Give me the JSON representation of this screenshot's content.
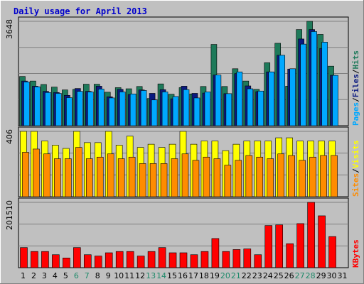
{
  "chart_data": {
    "type": "bar",
    "title": "Daily usage for April 2013",
    "categories": [
      "1",
      "2",
      "3",
      "4",
      "5",
      "6",
      "7",
      "8",
      "9",
      "10",
      "11",
      "12",
      "13",
      "14",
      "15",
      "16",
      "17",
      "18",
      "19",
      "20",
      "21",
      "22",
      "23",
      "24",
      "25",
      "26",
      "27",
      "28",
      "29",
      "30",
      "31"
    ],
    "weekend_days": [
      "6",
      "7",
      "13",
      "14",
      "20",
      "21",
      "27",
      "28"
    ],
    "panels": [
      {
        "id": "top",
        "ymax_label": "3648",
        "ymax": 3648,
        "legend": [
          "Pages",
          "/",
          "Files",
          "/",
          "Hits"
        ],
        "series": [
          {
            "name": "Hits",
            "color": "#1e7a5a",
            "values": [
              1720,
              1560,
              1440,
              1350,
              1250,
              1270,
              1450,
              1450,
              1170,
              1330,
              1290,
              1370,
              950,
              1460,
              1100,
              1330,
              1110,
              1370,
              2840,
              1370,
              1990,
              1560,
              1270,
              2200,
              2880,
              1380,
              3360,
              3648,
              3190,
              2080,
              0
            ]
          },
          {
            "name": "Files",
            "color": "#0a1a80",
            "values": [
              1560,
              1380,
              1200,
              1160,
              1060,
              1300,
              1200,
              1380,
              1010,
              1270,
              1090,
              1250,
              1130,
              1260,
              940,
              1380,
              1130,
              1140,
              1770,
              1120,
              1820,
              1390,
              1190,
              1880,
              2460,
              1980,
              3030,
              3360,
              2700,
              1760,
              0
            ]
          },
          {
            "name": "Pages",
            "color": "#00a8ff",
            "values": [
              1530,
              1360,
              1160,
              1130,
              980,
              1200,
              1180,
              1280,
              970,
              1180,
              1110,
              1230,
              900,
              1180,
              1020,
              1260,
              970,
              1180,
              1770,
              1120,
              1880,
              1290,
              1210,
              1880,
              2460,
              1990,
              2850,
              3290,
              2920,
              1760,
              0
            ]
          }
        ]
      },
      {
        "id": "mid",
        "ymax_label": "406",
        "ymax": 406,
        "legend": [
          "Sites",
          "/",
          "Visits"
        ],
        "series": [
          {
            "name": "Visits",
            "color": "#ffff00",
            "values": [
              406,
              406,
              346,
              320,
              300,
              406,
              336,
              336,
              406,
              320,
              376,
              306,
              326,
              306,
              326,
              406,
              326,
              346,
              346,
              286,
              326,
              346,
              346,
              346,
              366,
              366,
              346,
              346,
              346,
              346,
              0
            ]
          },
          {
            "name": "Sites",
            "color": "#ff8c00",
            "values": [
              276,
              296,
              266,
              236,
              236,
              306,
              236,
              246,
              266,
              236,
              246,
              206,
              206,
              206,
              236,
              266,
              226,
              246,
              236,
              196,
              226,
              256,
              246,
              236,
              266,
              256,
              226,
              246,
              256,
              256,
              0
            ]
          }
        ]
      },
      {
        "id": "bot",
        "ymax_label": "201510",
        "ymax": 201510,
        "legend": [
          "KBytes"
        ],
        "series": [
          {
            "name": "KBytes",
            "color": "#ff0000",
            "values": [
              62000,
              50000,
              50000,
              40000,
              30000,
              62000,
              40000,
              36000,
              46000,
              50000,
              50000,
              36000,
              50000,
              62000,
              46000,
              46000,
              40000,
              50000,
              90000,
              50000,
              56000,
              58000,
              40000,
              130000,
              132000,
              74000,
              136000,
              201510,
              160000,
              96000,
              0
            ]
          }
        ]
      }
    ]
  }
}
